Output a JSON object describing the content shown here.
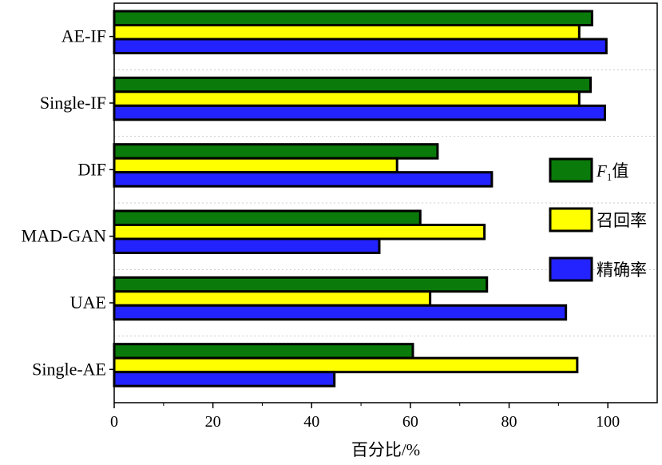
{
  "chart_data": {
    "type": "bar",
    "orientation": "horizontal",
    "categories": [
      "AE-IF",
      "Single-IF",
      "DIF",
      "MAD-GAN",
      "UAE",
      "Single-AE"
    ],
    "series": [
      {
        "name": "F1值",
        "legend_main": "F",
        "legend_sub": "1",
        "legend_suffix": "值",
        "color": "#0a7a0a",
        "values": [
          96.8,
          96.5,
          65.5,
          62.0,
          75.5,
          60.5
        ]
      },
      {
        "name": "召回率",
        "color": "#ffff00",
        "values": [
          94.2,
          94.2,
          57.3,
          75.0,
          64.0,
          93.8
        ]
      },
      {
        "name": "精确率",
        "color": "#2323ff",
        "values": [
          99.7,
          99.4,
          76.5,
          53.7,
          91.5,
          44.6
        ]
      }
    ],
    "xlim": [
      0,
      110
    ],
    "xticks": [
      0,
      20,
      40,
      60,
      80,
      100
    ],
    "xlabel": "百分比/%",
    "ylabel": "",
    "title": "",
    "grid": "dashed-horizontal",
    "legend_position": "right"
  }
}
